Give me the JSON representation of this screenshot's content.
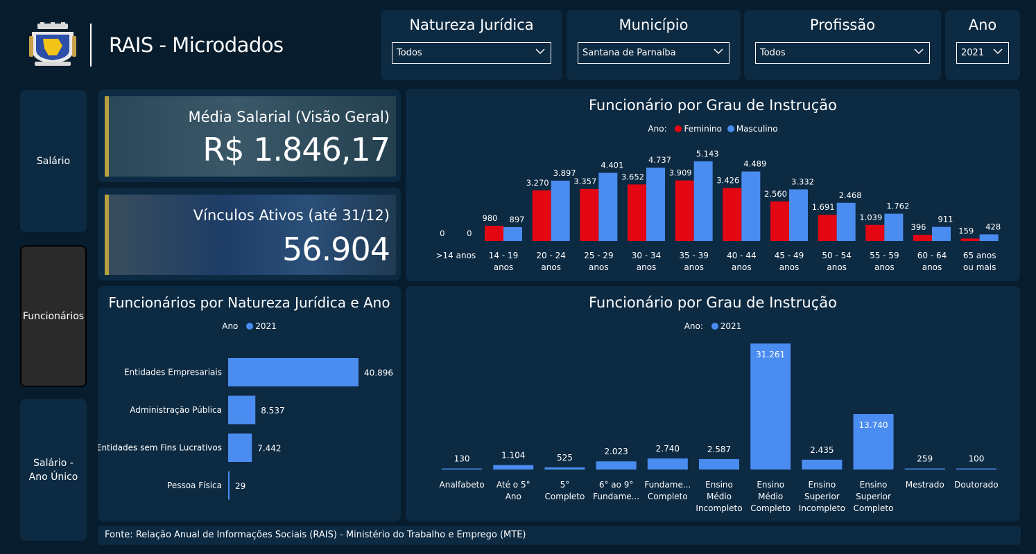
{
  "header": {
    "title": "RAIS - Microdados"
  },
  "filters": [
    {
      "title": "Natureza Jurídica",
      "value": "Todos"
    },
    {
      "title": "Município",
      "value": "Santana de Parnaíba"
    },
    {
      "title": "Profissão",
      "value": "Todos"
    },
    {
      "title": "Ano",
      "value": "2021"
    }
  ],
  "nav": [
    {
      "label": "Salário"
    },
    {
      "label": "Funcionários"
    },
    {
      "label": "Salário - Ano Único"
    }
  ],
  "kpis": {
    "salary": {
      "label": "Média Salarial (Visão Geral)",
      "value": "R$ 1.846,17"
    },
    "links": {
      "label": "Vínculos Ativos (até 31/12)",
      "value": "56.904"
    }
  },
  "colors": {
    "feminino": "#e30613",
    "masculino": "#4a8cf0",
    "series2021": "#4a8cf0"
  },
  "footer": {
    "text": "Fonte: Relação Anual de Informações Sociais (RAIS) - Ministério do Trabalho e Emprego (MTE)"
  },
  "chart_data": [
    {
      "id": "age",
      "type": "bar",
      "title": "Funcionário por Grau de Instrução",
      "legend_title": "Ano:",
      "categories": [
        ">14 anos",
        "14 - 19 anos",
        "20 - 24 anos",
        "25 - 29 anos",
        "30 - 34 anos",
        "35 - 39 anos",
        "40 - 44 anos",
        "45 - 49 anos",
        "50 - 54 anos",
        "55 - 59 anos",
        "60 - 64 anos",
        "65 anos ou mais"
      ],
      "series": [
        {
          "name": "Feminino",
          "values": [
            0,
            980,
            3270,
            3357,
            3652,
            3909,
            3426,
            2560,
            1691,
            1039,
            396,
            159
          ],
          "labels": [
            "0",
            "980",
            "3.270",
            "3.357",
            "3.652",
            "3.909",
            "3.426",
            "2.560",
            "1.691",
            "1.039",
            "396",
            "159"
          ]
        },
        {
          "name": "Masculino",
          "values": [
            0,
            897,
            3897,
            4401,
            4737,
            5143,
            4489,
            3332,
            2468,
            1762,
            911,
            428
          ],
          "labels": [
            "0",
            "897",
            "3.897",
            "4.401",
            "4.737",
            "5.143",
            "4.489",
            "3.332",
            "2.468",
            "1.762",
            "911",
            "428"
          ]
        }
      ],
      "legend_position": "top-center",
      "grid": false
    },
    {
      "id": "natureza",
      "type": "bar",
      "orientation": "horizontal",
      "title": "Funcionários por Natureza Jurídica e Ano",
      "legend_title": "Ano",
      "categories": [
        "Entidades Empresariais",
        "Administração Pública",
        "Entidades sem Fins Lucrativos",
        "Pessoa Física"
      ],
      "series": [
        {
          "name": "2021",
          "values": [
            40896,
            8537,
            7442,
            29
          ],
          "labels": [
            "40.896",
            "8.537",
            "7.442",
            "29"
          ]
        }
      ],
      "legend_position": "top-center",
      "grid": false
    },
    {
      "id": "instrucao",
      "type": "bar",
      "title": "Funcionário por Grau de Instrução",
      "legend_title": "Ano:",
      "categories": [
        "Analfabeto",
        "Até o 5° Ano",
        "5° Completo",
        "6° ao 9° Fundame...",
        "Fundame... Completo",
        "Ensino Médio Incompleto",
        "Ensino Médio Completo",
        "Ensino Superior Incompleto",
        "Ensino Superior Completo",
        "Mestrado",
        "Doutorado"
      ],
      "series": [
        {
          "name": "2021",
          "values": [
            130,
            1104,
            525,
            2023,
            2740,
            2587,
            31261,
            2435,
            13740,
            259,
            100
          ],
          "labels": [
            "130",
            "1.104",
            "525",
            "2.023",
            "2.740",
            "2.587",
            "31.261",
            "2.435",
            "13.740",
            "259",
            "100"
          ]
        }
      ],
      "legend_position": "top-center",
      "grid": false
    }
  ]
}
